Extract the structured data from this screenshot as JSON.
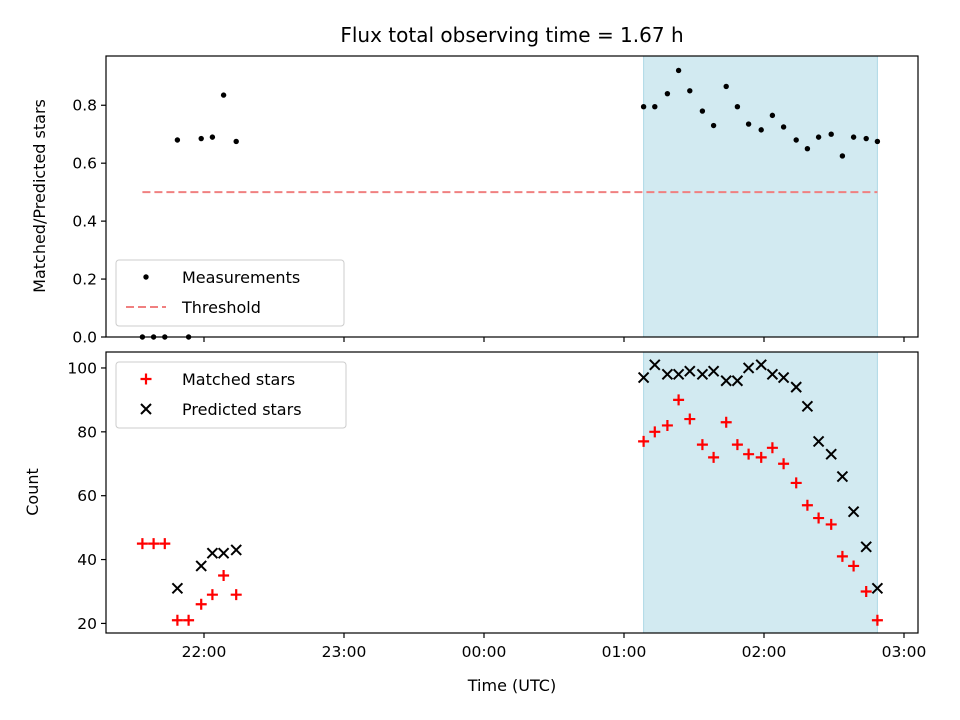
{
  "chart_data": {
    "title": "Flux total observing time = 1.67 h",
    "xlabel": "Time (UTC)",
    "x_tick_labels": [
      "22:00",
      "23:00",
      "00:00",
      "01:00",
      "02:00",
      "03:00"
    ],
    "x_tick_hours": [
      22,
      23,
      24,
      25,
      26,
      27
    ],
    "xlim": [
      21.3,
      27.1
    ],
    "shaded_region": [
      25.14,
      26.81
    ],
    "colors": {
      "measurement": "#000000",
      "threshold": "#f08080",
      "matched": "#ff0000",
      "predicted": "#000000",
      "shade": "#add8e6"
    },
    "panels": [
      {
        "id": "ratio",
        "type": "scatter",
        "ylabel": "Matched/Predicted stars",
        "ylim": [
          0,
          0.97
        ],
        "yticks": [
          0.0,
          0.2,
          0.4,
          0.6,
          0.8
        ],
        "y_tick_labels": [
          "0.0",
          "0.2",
          "0.4",
          "0.6",
          "0.8"
        ],
        "legend": [
          "Measurements",
          "Threshold"
        ],
        "threshold": {
          "name": "Threshold",
          "y": 0.5,
          "x_range": [
            21.56,
            26.81
          ]
        },
        "series": [
          {
            "name": "Measurements",
            "marker": "dot",
            "points": [
              [
                21.56,
                0.0
              ],
              [
                21.64,
                0.0
              ],
              [
                21.72,
                0.0
              ],
              [
                21.81,
                0.68
              ],
              [
                21.89,
                0.0
              ],
              [
                21.98,
                0.685
              ],
              [
                22.06,
                0.69
              ],
              [
                22.14,
                0.835
              ],
              [
                22.23,
                0.675
              ],
              [
                25.14,
                0.795
              ],
              [
                25.22,
                0.795
              ],
              [
                25.31,
                0.84
              ],
              [
                25.39,
                0.92
              ],
              [
                25.47,
                0.85
              ],
              [
                25.56,
                0.78
              ],
              [
                25.64,
                0.73
              ],
              [
                25.73,
                0.865
              ],
              [
                25.81,
                0.795
              ],
              [
                25.89,
                0.735
              ],
              [
                25.98,
                0.715
              ],
              [
                26.06,
                0.765
              ],
              [
                26.14,
                0.725
              ],
              [
                26.23,
                0.68
              ],
              [
                26.31,
                0.65
              ],
              [
                26.39,
                0.69
              ],
              [
                26.48,
                0.7
              ],
              [
                26.56,
                0.625
              ],
              [
                26.64,
                0.69
              ],
              [
                26.73,
                0.685
              ],
              [
                26.81,
                0.675
              ]
            ]
          }
        ]
      },
      {
        "id": "counts",
        "type": "scatter",
        "ylabel": "Count",
        "ylim": [
          17,
          105
        ],
        "yticks": [
          20,
          40,
          60,
          80,
          100
        ],
        "y_tick_labels": [
          "20",
          "40",
          "60",
          "80",
          "100"
        ],
        "legend": [
          "Matched stars",
          "Predicted stars"
        ],
        "series": [
          {
            "name": "Matched stars",
            "marker": "plus",
            "points": [
              [
                21.56,
                45
              ],
              [
                21.64,
                45
              ],
              [
                21.72,
                45
              ],
              [
                21.81,
                21
              ],
              [
                21.89,
                21
              ],
              [
                21.98,
                26
              ],
              [
                22.06,
                29
              ],
              [
                22.14,
                35
              ],
              [
                22.23,
                29
              ],
              [
                25.14,
                77
              ],
              [
                25.22,
                80
              ],
              [
                25.31,
                82
              ],
              [
                25.39,
                90
              ],
              [
                25.47,
                84
              ],
              [
                25.56,
                76
              ],
              [
                25.64,
                72
              ],
              [
                25.73,
                83
              ],
              [
                25.81,
                76
              ],
              [
                25.89,
                73
              ],
              [
                25.98,
                72
              ],
              [
                26.06,
                75
              ],
              [
                26.14,
                70
              ],
              [
                26.23,
                64
              ],
              [
                26.31,
                57
              ],
              [
                26.39,
                53
              ],
              [
                26.48,
                51
              ],
              [
                26.56,
                41
              ],
              [
                26.64,
                38
              ],
              [
                26.73,
                30
              ],
              [
                26.81,
                21
              ]
            ]
          },
          {
            "name": "Predicted stars",
            "marker": "cross",
            "points": [
              [
                21.81,
                31
              ],
              [
                21.98,
                38
              ],
              [
                22.06,
                42
              ],
              [
                22.14,
                42
              ],
              [
                22.23,
                43
              ],
              [
                25.14,
                97
              ],
              [
                25.22,
                101
              ],
              [
                25.31,
                98
              ],
              [
                25.39,
                98
              ],
              [
                25.47,
                99
              ],
              [
                25.56,
                98
              ],
              [
                25.64,
                99
              ],
              [
                25.73,
                96
              ],
              [
                25.81,
                96
              ],
              [
                25.89,
                100
              ],
              [
                25.98,
                101
              ],
              [
                26.06,
                98
              ],
              [
                26.14,
                97
              ],
              [
                26.23,
                94
              ],
              [
                26.31,
                88
              ],
              [
                26.39,
                77
              ],
              [
                26.48,
                73
              ],
              [
                26.56,
                66
              ],
              [
                26.64,
                55
              ],
              [
                26.73,
                44
              ],
              [
                26.81,
                31
              ]
            ]
          }
        ]
      }
    ]
  }
}
